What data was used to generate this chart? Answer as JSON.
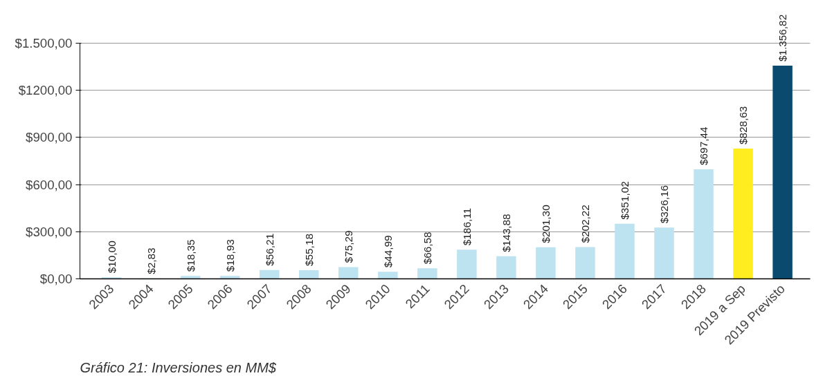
{
  "chart_data": {
    "type": "bar",
    "categories": [
      "2003",
      "2004",
      "2005",
      "2006",
      "2007",
      "2008",
      "2009",
      "2010",
      "2011",
      "2012",
      "2013",
      "2014",
      "2015",
      "2016",
      "2017",
      "2018",
      "2019 a Sep",
      "2019 Previsto"
    ],
    "values": [
      10.0,
      2.83,
      18.35,
      18.93,
      56.21,
      55.18,
      75.29,
      44.99,
      66.58,
      186.11,
      143.88,
      201.3,
      202.22,
      351.02,
      326.16,
      697.44,
      828.63,
      1356.82
    ],
    "value_labels": [
      "$10,00",
      "$2,83",
      "$18,35",
      "$18,93",
      "$56,21",
      "$55,18",
      "$75,29",
      "$44,99",
      "$66,58",
      "$186,11",
      "$143,88",
      "$201,30",
      "$202,22",
      "$351,02",
      "$326,16",
      "$697,44",
      "$828,63",
      "$1.356,82"
    ],
    "colors": [
      "#bde3f0",
      "#bde3f0",
      "#bde3f0",
      "#bde3f0",
      "#bde3f0",
      "#bde3f0",
      "#bde3f0",
      "#bde3f0",
      "#bde3f0",
      "#bde3f0",
      "#bde3f0",
      "#bde3f0",
      "#bde3f0",
      "#bde3f0",
      "#bde3f0",
      "#bde3f0",
      "#ffed1f",
      "#0a4a6e"
    ],
    "ylim": [
      0,
      1500
    ],
    "yticks": [
      {
        "value": 0,
        "label": "$0,00"
      },
      {
        "value": 300,
        "label": "$300,00"
      },
      {
        "value": 600,
        "label": "$600,00"
      },
      {
        "value": 900,
        "label": "$900,00"
      },
      {
        "value": 1200,
        "label": "$1200,00"
      },
      {
        "value": 1500,
        "label": "$1.500,00"
      }
    ],
    "grid": "y",
    "annotations": [
      "Gráfico 21: Inversiones en MM$"
    ]
  }
}
